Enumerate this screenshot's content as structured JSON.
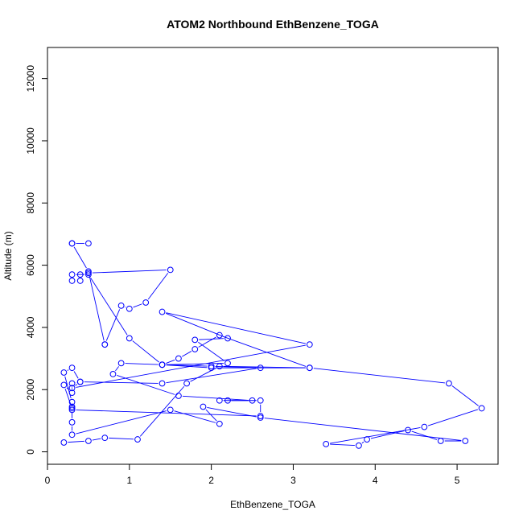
{
  "chart_data": {
    "type": "line",
    "title": "ATOM2 Northbound EthBenzene_TOGA",
    "xlabel": "EthBenzene_TOGA",
    "ylabel": "Altitude (m)",
    "xlim": [
      0,
      5.5
    ],
    "ylim": [
      -400,
      13000
    ],
    "xticks": [
      "0",
      "1",
      "2",
      "3",
      "4",
      "5"
    ],
    "yticks": [
      "0",
      "2000",
      "4000",
      "6000",
      "8000",
      "10000",
      "12000"
    ],
    "grid": false,
    "series_color": "#0000ff",
    "series": [
      {
        "x": [
          0.5,
          0.3,
          0.3,
          0.5,
          0.7,
          0.7,
          0.9,
          1.0,
          1.2,
          1.5,
          0.5,
          0.4,
          0.4,
          0.3,
          0.3,
          0.5,
          1.0,
          1.4,
          1.6,
          1.8,
          2.1,
          3.2,
          2.0,
          1.4,
          0.9,
          0.8,
          1.6,
          2.5,
          2.2,
          2.1,
          2.6,
          2.6,
          0.3,
          0.3,
          0.3,
          0.2,
          0.3,
          0.4,
          1.4,
          2.6,
          2.0,
          1.4,
          2.2,
          1.8,
          2.2,
          1.4,
          3.2,
          0.3,
          0.4,
          0.3,
          0.3,
          0.2,
          0.3,
          0.3,
          0.3,
          1.5,
          2.1,
          1.9,
          2.6,
          5.1,
          4.8,
          4.4,
          3.9,
          3.8,
          3.4,
          4.6,
          5.3,
          4.9,
          3.2,
          2.1,
          1.7,
          1.1,
          0.7,
          0.5,
          0.2
        ],
        "y": [
          6700,
          6700,
          6700,
          5800,
          3450,
          3450,
          4700,
          4600,
          4800,
          5850,
          5750,
          5700,
          5500,
          5500,
          5700,
          5700,
          3650,
          2800,
          3000,
          3300,
          3750,
          2700,
          2700,
          2800,
          2850,
          2500,
          1800,
          1650,
          1650,
          1650,
          1650,
          1150,
          1350,
          1450,
          1600,
          2550,
          2700,
          2250,
          2200,
          2700,
          2750,
          2800,
          2850,
          3600,
          3650,
          4500,
          3450,
          2050,
          2250,
          2200,
          1900,
          2150,
          1400,
          950,
          550,
          1350,
          900,
          1450,
          1100,
          350,
          350,
          700,
          400,
          200,
          250,
          800,
          1400,
          2200,
          2700,
          2750,
          2200,
          400,
          450,
          350,
          300
        ]
      }
    ]
  }
}
